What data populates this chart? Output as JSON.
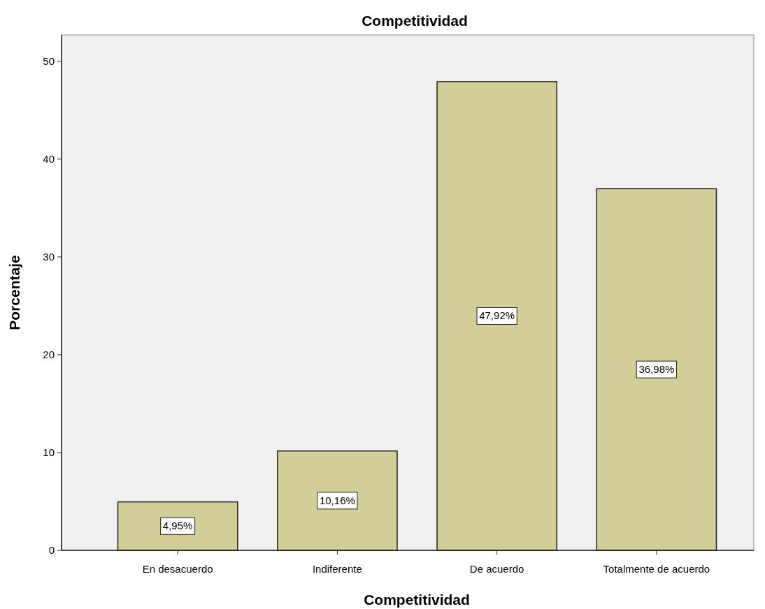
{
  "chart_data": {
    "type": "bar",
    "title": "Competitividad",
    "xlabel": "Competitividad",
    "ylabel": "Porcentaje",
    "categories": [
      "En desacuerdo",
      "Indiferente",
      "De acuerdo",
      "Totalmente de acuerdo"
    ],
    "values": [
      4.95,
      10.16,
      47.92,
      36.98
    ],
    "value_labels": [
      "4,95%",
      "10,16%",
      "47,92%",
      "36,98%"
    ],
    "color": "#d3cd98",
    "ylim": [
      0,
      52.7
    ],
    "yticks": [
      0,
      10,
      20,
      30,
      40,
      50
    ]
  }
}
